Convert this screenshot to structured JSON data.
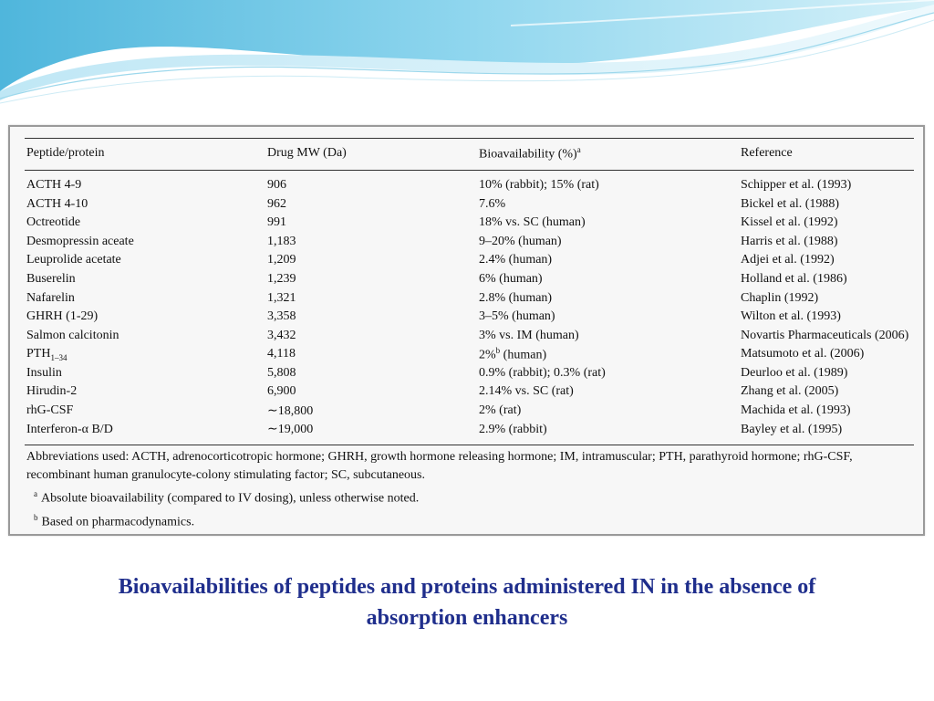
{
  "table": {
    "headers": {
      "peptide": "Peptide/protein",
      "mw": "Drug MW (Da)",
      "bio": "Bioavailability (%)",
      "bio_sup": "a",
      "ref": "Reference"
    },
    "rows": [
      {
        "peptide": "ACTH 4-9",
        "mw": "906",
        "bio": "10% (rabbit); 15% (rat)",
        "ref": "Schipper et al. (1993)"
      },
      {
        "peptide": "ACTH 4-10",
        "mw": "962",
        "bio": "7.6%",
        "ref": "Bickel et al. (1988)"
      },
      {
        "peptide": "Octreotide",
        "mw": "991",
        "bio": "18% vs. SC (human)",
        "ref": "Kissel et al. (1992)"
      },
      {
        "peptide": "Desmopressin aceate",
        "mw": "1,183",
        "bio": "9–20% (human)",
        "ref": "Harris et al. (1988)"
      },
      {
        "peptide": "Leuprolide acetate",
        "mw": "1,209",
        "bio": "2.4% (human)",
        "ref": "Adjei et al. (1992)"
      },
      {
        "peptide": "Buserelin",
        "mw": "1,239",
        "bio": "6% (human)",
        "ref": "Holland et al. (1986)"
      },
      {
        "peptide": "Nafarelin",
        "mw": "1,321",
        "bio": "2.8% (human)",
        "ref": "Chaplin (1992)"
      },
      {
        "peptide": "GHRH (1-29)",
        "mw": "3,358",
        "bio": "3–5% (human)",
        "ref": "Wilton et al. (1993)"
      },
      {
        "peptide": "Salmon calcitonin",
        "mw": "3,432",
        "bio": "3% vs. IM (human)",
        "ref": "Novartis Pharmaceuticals (2006)"
      },
      {
        "peptide": "PTH",
        "peptide_sub": "1–34",
        "mw": "4,118",
        "bio": "2%",
        "bio_sup": "b",
        "bio_rest": " (human)",
        "ref": "Matsumoto et al. (2006)"
      },
      {
        "peptide": "Insulin",
        "mw": "5,808",
        "bio": "0.9% (rabbit); 0.3% (rat)",
        "ref": "Deurloo et al. (1989)"
      },
      {
        "peptide": "Hirudin-2",
        "mw": "6,900",
        "bio": "2.14% vs. SC (rat)",
        "ref": "Zhang et al. (2005)"
      },
      {
        "peptide": "rhG-CSF",
        "mw": "∼18,800",
        "bio": "2% (rat)",
        "ref": "Machida et al. (1993)"
      },
      {
        "peptide": "Interferon-α B/D",
        "mw": "∼19,000",
        "bio": "2.9% (rabbit)",
        "ref": "Bayley et al. (1995)"
      }
    ]
  },
  "footnotes": {
    "abbreviations": "Abbreviations used: ACTH, adrenocorticotropic hormone; GHRH, growth hormone releasing hormone; IM, intramuscular; PTH, parathyroid hormone; rhG-CSF, recombinant human granulocyte-colony stimulating factor; SC, subcutaneous.",
    "a_mark": "a",
    "a_text": "Absolute bioavailability (compared to IV dosing), unless otherwise noted.",
    "b_mark": "b",
    "b_text": "Based on pharmacodynamics."
  },
  "caption": {
    "line1": "Bioavailabilities of peptides and proteins administered IN in the absence of",
    "line2": "absorption enhancers"
  },
  "colors": {
    "caption": "#1f2e8c",
    "wave_dark": "#5bbfe0",
    "wave_light": "#c8ecf7"
  }
}
